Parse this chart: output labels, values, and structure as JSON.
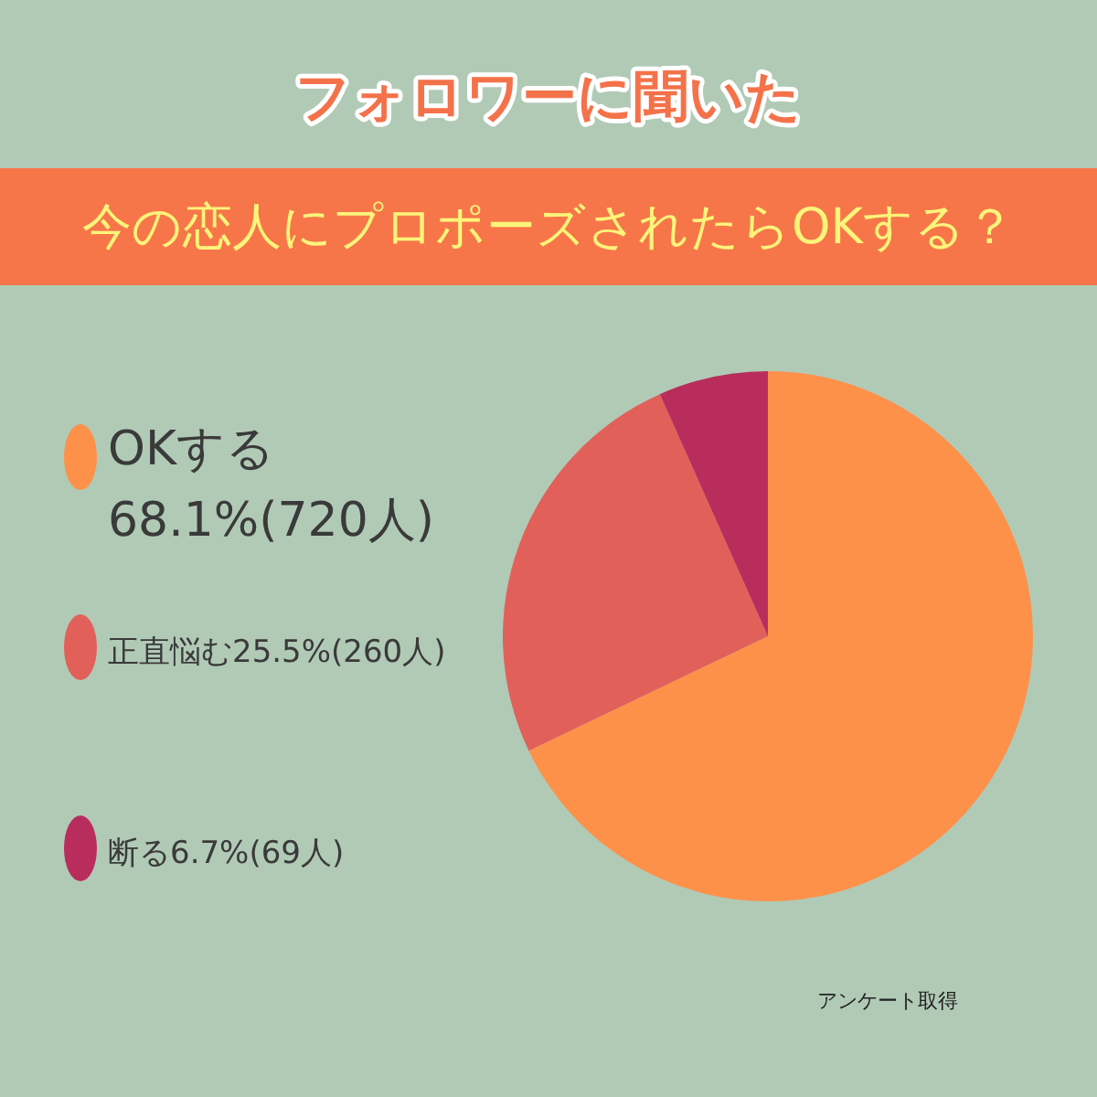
{
  "chart_data": {
    "type": "pie",
    "title": "フォロワーに聞いた",
    "subtitle": "今の恋人にプロポーズされたらOKする？",
    "categories": [
      "OKする",
      "正直悩む",
      "断る"
    ],
    "values": [
      68.1,
      25.5,
      6.7
    ],
    "colors": [
      "#fe914a",
      "#e2605a",
      "#b92d5d"
    ],
    "value_labels": [
      "68.1%(720人)",
      "25.5%(260人)",
      "6.7%(69人)"
    ],
    "legend": "left",
    "annotations": [
      "アンケート取得"
    ]
  }
}
